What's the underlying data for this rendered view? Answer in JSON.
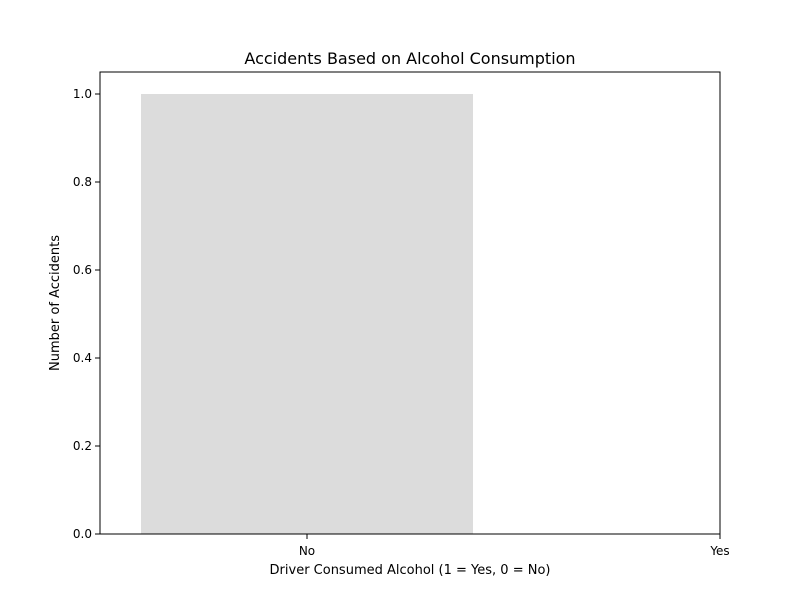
{
  "chart_data": {
    "type": "bar",
    "title": "Accidents Based on Alcohol Consumption",
    "xlabel": "Driver Consumed Alcohol (1 = Yes, 0 = No)",
    "ylabel": "Number of Accidents",
    "categories": [
      "No",
      "Yes"
    ],
    "values": [
      1,
      0
    ],
    "ylim": [
      0,
      1.05
    ],
    "yticks": [
      "0.0",
      "0.2",
      "0.4",
      "0.6",
      "0.8",
      "1.0"
    ],
    "grid": false,
    "legend": "none",
    "bar_color": "#dcdcdc"
  }
}
